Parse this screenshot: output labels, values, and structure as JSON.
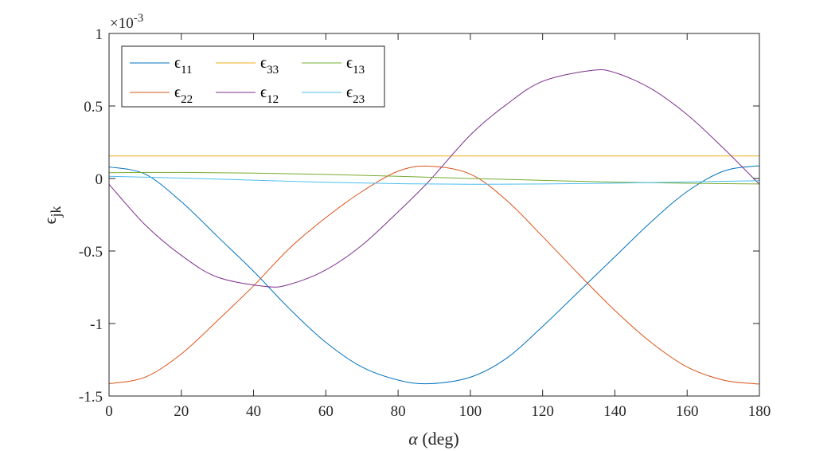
{
  "chart_data": {
    "type": "line",
    "xlabel_symbol": "α",
    "xlabel_text": " (deg)",
    "ylabel_symbol": "ϵ",
    "ylabel_sub": "jk",
    "xlim": [
      0,
      180
    ],
    "ylim": [
      -1.5,
      1
    ],
    "y_exponent_prefix": "×10",
    "y_exponent": "-3",
    "x_ticks": [
      0,
      20,
      40,
      60,
      80,
      100,
      120,
      140,
      160,
      180
    ],
    "y_ticks": [
      1,
      0.5,
      0,
      -0.5,
      -1,
      -1.5
    ],
    "y_tick_labels": [
      "1",
      "0.5",
      "0",
      "-0.5",
      "-1",
      "-1.5"
    ],
    "grid": false,
    "legend_position": "top-left",
    "series": [
      {
        "name": "ϵ11",
        "symbol": "ϵ",
        "sub": "11",
        "color": "#0072BD",
        "x": [
          0,
          10,
          20,
          30,
          40,
          50,
          60,
          70,
          80,
          88.5,
          100,
          110,
          120,
          130,
          140,
          150,
          160,
          170,
          178.5,
          180
        ],
        "y": [
          0.08,
          0.03,
          -0.16,
          -0.4,
          -0.64,
          -0.9,
          -1.13,
          -1.3,
          -1.39,
          -1.415,
          -1.37,
          -1.24,
          -1.02,
          -0.78,
          -0.54,
          -0.3,
          -0.09,
          0.05,
          0.085,
          0.085
        ]
      },
      {
        "name": "ϵ22",
        "symbol": "ϵ",
        "sub": "22",
        "color": "#D95319",
        "x": [
          0,
          10,
          20,
          30,
          40,
          50,
          60,
          70,
          80,
          88.5,
          100,
          110,
          120,
          130,
          140,
          150,
          160,
          170,
          178.5,
          180
        ],
        "y": [
          -1.415,
          -1.37,
          -1.21,
          -0.98,
          -0.74,
          -0.48,
          -0.27,
          -0.09,
          0.05,
          0.085,
          0.03,
          -0.15,
          -0.4,
          -0.66,
          -0.91,
          -1.13,
          -1.3,
          -1.39,
          -1.415,
          -1.415
        ]
      },
      {
        "name": "ϵ33",
        "symbol": "ϵ",
        "sub": "33",
        "color": "#EDB120",
        "x": [
          0,
          180
        ],
        "y": [
          0.155,
          0.155
        ]
      },
      {
        "name": "ϵ12",
        "symbol": "ϵ",
        "sub": "12",
        "color": "#7E2F8E",
        "x": [
          0,
          10,
          20,
          30,
          43.5,
          50,
          60,
          70,
          80,
          88.5,
          100,
          110,
          120,
          133.5,
          140,
          150,
          160,
          170,
          180
        ],
        "y": [
          -0.04,
          -0.32,
          -0.53,
          -0.68,
          -0.745,
          -0.73,
          -0.63,
          -0.46,
          -0.23,
          -0.02,
          0.3,
          0.51,
          0.67,
          0.745,
          0.73,
          0.62,
          0.44,
          0.21,
          -0.04
        ]
      },
      {
        "name": "ϵ13",
        "symbol": "ϵ",
        "sub": "13",
        "color": "#77AC30",
        "x": [
          0,
          20,
          40,
          60,
          80,
          100,
          120,
          140,
          160,
          180
        ],
        "y": [
          0.04,
          0.042,
          0.037,
          0.028,
          0.015,
          0.0,
          -0.013,
          -0.025,
          -0.033,
          -0.038
        ]
      },
      {
        "name": "ϵ23",
        "symbol": "ϵ",
        "sub": "23",
        "color": "#4DBEEE",
        "x": [
          0,
          20,
          40,
          60,
          80,
          100,
          120,
          140,
          160,
          180
        ],
        "y": [
          0.015,
          0.003,
          -0.012,
          -0.026,
          -0.036,
          -0.04,
          -0.038,
          -0.032,
          -0.024,
          -0.015
        ]
      }
    ]
  }
}
